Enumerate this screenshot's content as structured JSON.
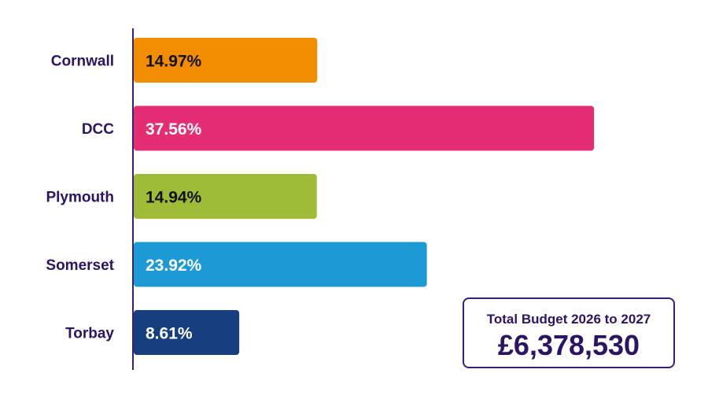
{
  "chart_data": {
    "type": "bar",
    "orientation": "horizontal",
    "categories": [
      "Cornwall",
      "DCC",
      "Plymouth",
      "Somerset",
      "Torbay"
    ],
    "values": [
      14.97,
      37.56,
      14.94,
      23.92,
      8.61
    ],
    "value_labels": [
      "14.97%",
      "37.56%",
      "14.94%",
      "23.92%",
      "8.61%"
    ],
    "colors": [
      "#f28c00",
      "#e52d73",
      "#9ebc36",
      "#1b9ad6",
      "#173f7f"
    ],
    "label_colors": [
      "#111111",
      "#ffffff",
      "#111111",
      "#ffffff",
      "#ffffff"
    ],
    "xlim": [
      0,
      38
    ],
    "grid": false,
    "legend": "none"
  },
  "total": {
    "title": "Total Budget 2026 to 2027",
    "value": "£6,378,530"
  },
  "colors": {
    "axis": "#3a1f73",
    "text": "#2b1463"
  }
}
